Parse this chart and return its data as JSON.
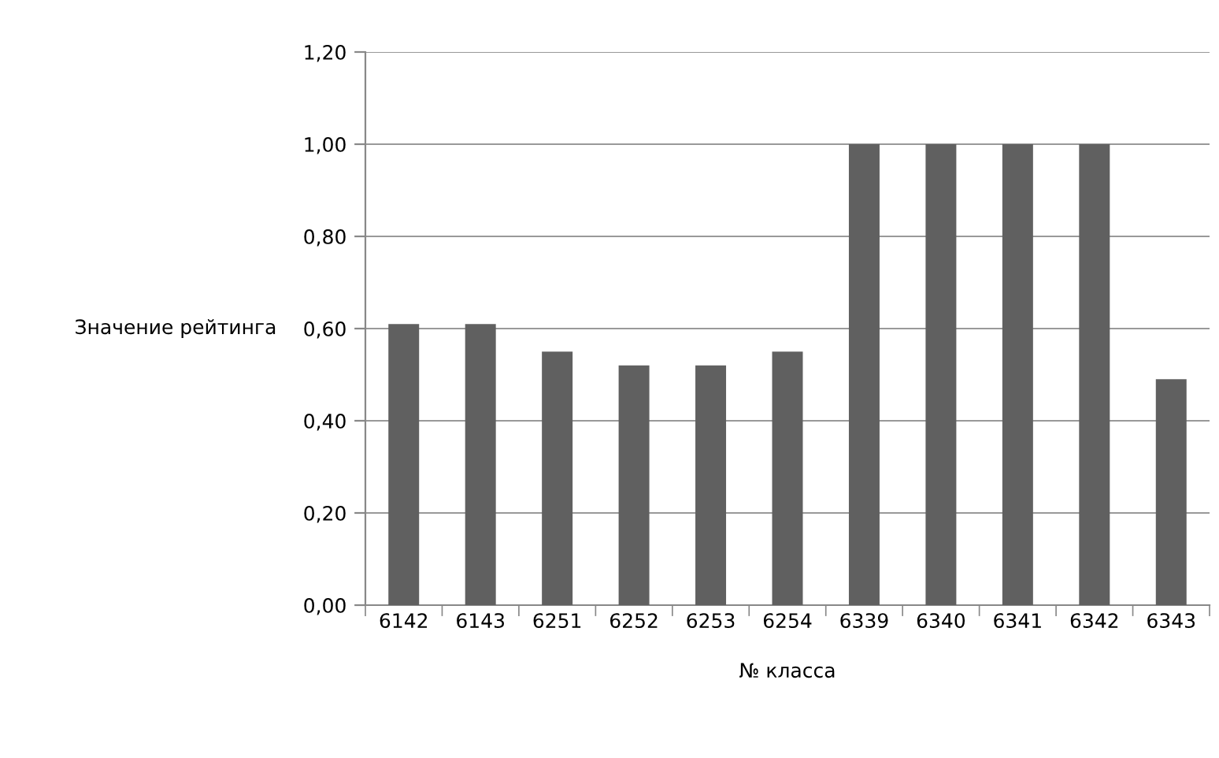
{
  "chart_data": {
    "type": "bar",
    "xlabel": "№ класса",
    "ylabel": "Значение рейтинга",
    "categories": [
      "6142",
      "6143",
      "6251",
      "6252",
      "6253",
      "6254",
      "6339",
      "6340",
      "6341",
      "6342",
      "6343"
    ],
    "values": [
      0.61,
      0.61,
      0.55,
      0.52,
      0.52,
      0.55,
      1.0,
      1.0,
      1.0,
      1.0,
      0.49
    ],
    "color": "#606060",
    "ylim": [
      0,
      1.2
    ],
    "yticks": [
      {
        "value": 0,
        "label": "0,00"
      },
      {
        "value": 0.2,
        "label": "0,20"
      },
      {
        "value": 0.4,
        "label": "0,40"
      },
      {
        "value": 0.6,
        "label": "0,60"
      },
      {
        "value": 0.8,
        "label": "0,80"
      },
      {
        "value": 1.0,
        "label": "1,00"
      },
      {
        "value": 1.2,
        "label": "1,20"
      }
    ],
    "grid": "y",
    "legend": false
  }
}
